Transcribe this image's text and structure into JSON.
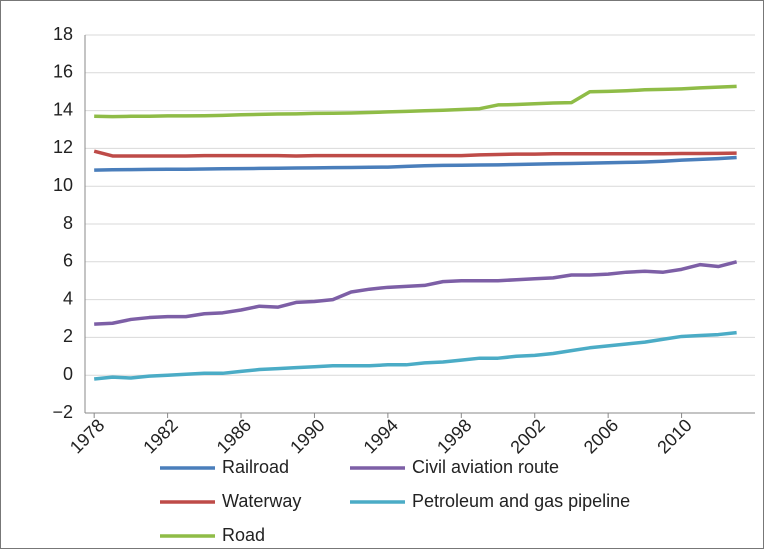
{
  "chart_data": {
    "type": "line",
    "x": [
      1978,
      1979,
      1980,
      1981,
      1982,
      1983,
      1984,
      1985,
      1986,
      1987,
      1988,
      1989,
      1990,
      1991,
      1992,
      1993,
      1994,
      1995,
      1996,
      1997,
      1998,
      1999,
      2000,
      2001,
      2002,
      2003,
      2004,
      2005,
      2006,
      2007,
      2008,
      2009,
      2010,
      2011,
      2012,
      2013
    ],
    "series": [
      {
        "name": "Railroad",
        "color": "#4a7ebb",
        "values": [
          10.85,
          10.87,
          10.88,
          10.89,
          10.9,
          10.9,
          10.91,
          10.92,
          10.93,
          10.94,
          10.95,
          10.96,
          10.97,
          10.98,
          10.99,
          11.0,
          11.01,
          11.05,
          11.08,
          11.1,
          11.11,
          11.12,
          11.13,
          11.15,
          11.17,
          11.19,
          11.2,
          11.22,
          11.24,
          11.26,
          11.28,
          11.32,
          11.38,
          11.42,
          11.46,
          11.52
        ]
      },
      {
        "name": "Civil aviation route",
        "color": "#7d5fa6",
        "values": [
          2.7,
          2.75,
          2.95,
          3.05,
          3.1,
          3.1,
          3.25,
          3.3,
          3.45,
          3.65,
          3.6,
          3.85,
          3.9,
          4.0,
          4.4,
          4.55,
          4.65,
          4.7,
          4.75,
          4.95,
          5.0,
          5.0,
          5.0,
          5.05,
          5.1,
          5.15,
          5.3,
          5.3,
          5.35,
          5.45,
          5.5,
          5.45,
          5.6,
          5.85,
          5.75,
          6.0
        ]
      },
      {
        "name": "Waterway",
        "color": "#be4b48",
        "values": [
          11.85,
          11.6,
          11.6,
          11.6,
          11.6,
          11.6,
          11.62,
          11.62,
          11.62,
          11.62,
          11.62,
          11.6,
          11.62,
          11.62,
          11.62,
          11.62,
          11.62,
          11.62,
          11.62,
          11.62,
          11.62,
          11.66,
          11.68,
          11.7,
          11.7,
          11.72,
          11.72,
          11.72,
          11.72,
          11.72,
          11.72,
          11.72,
          11.73,
          11.73,
          11.74,
          11.75
        ]
      },
      {
        "name": "Petroleum and gas pipeline",
        "color": "#4bacc6",
        "values": [
          -0.2,
          -0.1,
          -0.15,
          -0.05,
          0.0,
          0.05,
          0.1,
          0.1,
          0.2,
          0.3,
          0.35,
          0.4,
          0.45,
          0.5,
          0.5,
          0.5,
          0.55,
          0.55,
          0.65,
          0.7,
          0.8,
          0.9,
          0.9,
          1.0,
          1.05,
          1.15,
          1.3,
          1.45,
          1.55,
          1.65,
          1.75,
          1.9,
          2.05,
          2.1,
          2.15,
          2.25
        ]
      },
      {
        "name": "Road",
        "color": "#8fbc47",
        "values": [
          13.7,
          13.68,
          13.7,
          13.7,
          13.72,
          13.72,
          13.73,
          13.75,
          13.78,
          13.8,
          13.82,
          13.83,
          13.85,
          13.86,
          13.87,
          13.9,
          13.93,
          13.96,
          13.99,
          14.02,
          14.06,
          14.1,
          14.3,
          14.32,
          14.36,
          14.4,
          14.42,
          15.0,
          15.02,
          15.05,
          15.1,
          15.12,
          15.15,
          15.2,
          15.24,
          15.28
        ]
      }
    ],
    "xlim": [
      1977.5,
      2014
    ],
    "xticks": [
      1978,
      1982,
      1986,
      1990,
      1994,
      1998,
      2002,
      2006,
      2010
    ],
    "ylim": [
      -2,
      18
    ],
    "yticks": [
      {
        "value": -2,
        "label": "−2"
      },
      0,
      2,
      4,
      6,
      8,
      10,
      12,
      14,
      16,
      18
    ],
    "grid": true
  }
}
